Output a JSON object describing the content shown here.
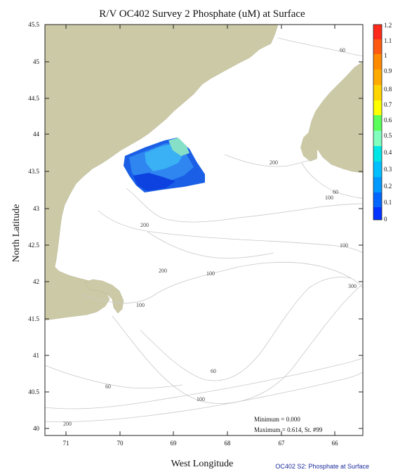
{
  "title": "R/V OC402 Survey 2 Phosphate (uM) at Surface",
  "x_axis": {
    "label": "West Longitude",
    "ticks": [
      "71",
      "70",
      "69",
      "68",
      "67",
      "66"
    ]
  },
  "y_axis": {
    "label": "North Latitude",
    "ticks": [
      "45.5",
      "45",
      "44.5",
      "44",
      "43.5",
      "43",
      "42.5",
      "42",
      "41.5",
      "41",
      "40.5",
      "40"
    ]
  },
  "colorbar": {
    "labels": [
      "1.2",
      "1.1",
      "1",
      "0.9",
      "0.8",
      "0.7",
      "0.6",
      "0.5",
      "0.4",
      "0.3",
      "0.2",
      "0.1",
      "0"
    ],
    "colors": [
      "#ff2a1a",
      "#ff5a10",
      "#ff8a00",
      "#ffaa00",
      "#ffd400",
      "#ffff00",
      "#5aff5a",
      "#80ffbf",
      "#00e5e5",
      "#00bfff",
      "#0099ff",
      "#0066ff",
      "#0033ff"
    ]
  },
  "contour_labels": [
    "60",
    "200",
    "60",
    "100",
    "200",
    "100",
    "200",
    "100",
    "300",
    "100",
    "60",
    "60",
    "100",
    "200"
  ],
  "stats": {
    "minimum": "Minimum = 0.000",
    "maximum": "Maximum = 0.614, St. #99"
  },
  "footer": "OC402  S2: Phosphate at Surface",
  "colors": {
    "land": "#cccaa6",
    "contour": "#c8c8c8",
    "ocean": "#ffffff"
  }
}
